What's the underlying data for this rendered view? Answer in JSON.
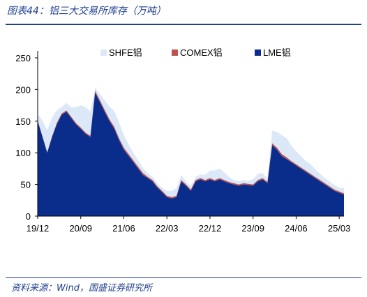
{
  "title": "图表44：铝三大交易所库存（万吨）",
  "source": "资料来源：Wind，国盛证券研究所",
  "chart_data": {
    "type": "area",
    "stacked": true,
    "grid": false,
    "legend_position": "top",
    "ylim": [
      0,
      250
    ],
    "yticks": [
      "0",
      "50",
      "100",
      "150",
      "200",
      "250"
    ],
    "xticks": [
      "19/12",
      "20/09",
      "21/06",
      "22/03",
      "22/12",
      "23/09",
      "24/06",
      "25/03"
    ],
    "xtick_positions": [
      0,
      9,
      18,
      27,
      36,
      45,
      54,
      63
    ],
    "x_unit": "months since 2019-12",
    "x": [
      0,
      1,
      2,
      3,
      4,
      5,
      6,
      7,
      8,
      9,
      10,
      11,
      12,
      13,
      14,
      15,
      16,
      17,
      18,
      19,
      20,
      21,
      22,
      23,
      24,
      25,
      26,
      27,
      28,
      29,
      30,
      31,
      32,
      33,
      34,
      35,
      36,
      37,
      38,
      39,
      40,
      41,
      42,
      43,
      44,
      45,
      46,
      47,
      48,
      49,
      50,
      51,
      52,
      53,
      54,
      55,
      56,
      57,
      58,
      59,
      60,
      61,
      62,
      63,
      64
    ],
    "series": [
      {
        "name": "LME铝",
        "color": "#0a2d8c",
        "values": [
          150,
          125,
          100,
          125,
          145,
          160,
          165,
          155,
          145,
          138,
          130,
          125,
          195,
          180,
          165,
          150,
          138,
          120,
          105,
          95,
          85,
          75,
          65,
          60,
          55,
          45,
          38,
          30,
          28,
          30,
          55,
          48,
          40,
          55,
          58,
          55,
          58,
          55,
          58,
          55,
          52,
          50,
          48,
          50,
          49,
          48,
          55,
          58,
          52,
          112,
          105,
          95,
          90,
          85,
          80,
          75,
          70,
          65,
          60,
          55,
          50,
          45,
          40,
          37,
          34
        ]
      },
      {
        "name": "COMEX铝",
        "color": "#c0504d",
        "values": [
          1,
          1,
          1,
          1,
          2,
          2,
          2,
          2,
          2,
          2,
          2,
          2,
          3,
          3,
          3,
          3,
          3,
          3,
          3,
          3,
          3,
          3,
          3,
          2,
          2,
          2,
          2,
          2,
          2,
          2,
          2,
          2,
          2,
          2,
          2,
          2,
          2,
          2,
          2,
          2,
          2,
          2,
          2,
          2,
          2,
          2,
          2,
          2,
          2,
          3,
          3,
          3,
          3,
          2,
          2,
          2,
          2,
          2,
          2,
          2,
          2,
          2,
          2,
          2,
          2
        ]
      },
      {
        "name": "SHFE铝",
        "color": "#dbe8f7",
        "values": [
          10,
          25,
          35,
          30,
          20,
          10,
          12,
          15,
          25,
          35,
          40,
          38,
          5,
          10,
          15,
          20,
          25,
          25,
          20,
          15,
          12,
          10,
          8,
          6,
          5,
          5,
          5,
          8,
          10,
          12,
          8,
          5,
          5,
          5,
          6,
          8,
          12,
          15,
          15,
          12,
          8,
          5,
          5,
          5,
          5,
          8,
          10,
          8,
          5,
          20,
          25,
          30,
          30,
          25,
          20,
          18,
          15,
          15,
          12,
          10,
          8,
          8,
          7,
          6,
          8
        ]
      }
    ]
  }
}
